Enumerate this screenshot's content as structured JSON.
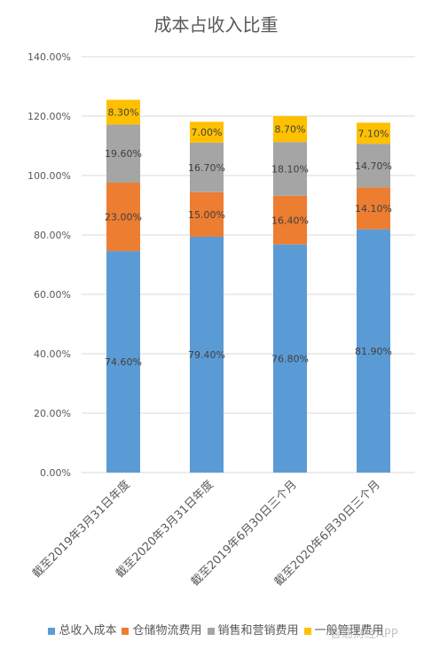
{
  "chart_data": {
    "type": "stacked-bar",
    "title": "成本占收入比重",
    "categories": [
      "截至2019年3月31日年度",
      "截至2020年3月31日年度",
      "截至2019年6月30日三个月",
      "截至2020年6月30日三个月"
    ],
    "series": [
      {
        "name": "总收入成本",
        "color": "#5B9BD5",
        "values": [
          74.6,
          79.4,
          76.8,
          81.9
        ],
        "labels": [
          "74.60%",
          "79.40%",
          "76.80%",
          "81.90%"
        ]
      },
      {
        "name": "仓储物流费用",
        "color": "#ED7D31",
        "values": [
          23.0,
          15.0,
          16.4,
          14.1
        ],
        "labels": [
          "23.00%",
          "15.00%",
          "16.40%",
          "14.10%"
        ]
      },
      {
        "name": "销售和营销费用",
        "color": "#A5A5A5",
        "values": [
          19.6,
          16.7,
          18.1,
          14.7
        ],
        "labels": [
          "19.60%",
          "16.70%",
          "18.10%",
          "14.70%"
        ]
      },
      {
        "name": "一般管理费用",
        "color": "#FFC000",
        "values": [
          8.3,
          7.0,
          8.7,
          7.1
        ],
        "labels": [
          "8.30%",
          "7.00%",
          "8.70%",
          "7.10%"
        ]
      }
    ],
    "ylim": [
      0,
      140
    ],
    "yticks": [
      "0.00%",
      "20.00%",
      "40.00%",
      "60.00%",
      "80.00%",
      "100.00%",
      "120.00%",
      "140.00%"
    ],
    "grid": true,
    "legend_position": "bottom"
  },
  "watermark": "智通财经APP"
}
